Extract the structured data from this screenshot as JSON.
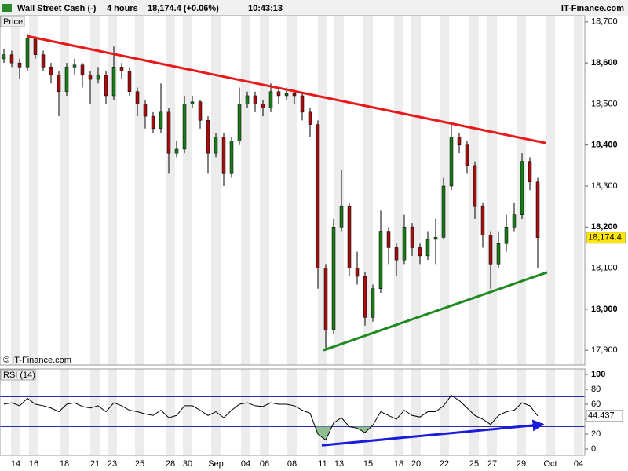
{
  "header": {
    "instrument": "Wall Street Cash (-)",
    "timeframe": "4 hours",
    "price": "18,174.4 (+0.06%)",
    "time": "10:43:13",
    "brand": "IT-Finance.com"
  },
  "chart_data": [
    {
      "type": "candlestick",
      "label": "Price",
      "copyright": "© IT-Finance.com",
      "last_label": "18,174.4",
      "up_color": "#1a7a1a",
      "down_color": "#a01010",
      "xlim": [
        -0.5,
        74
      ],
      "xticks": [
        {
          "value": 1.5,
          "label": "14"
        },
        {
          "value": 3.8,
          "label": "16"
        },
        {
          "value": 7.7,
          "label": "18"
        },
        {
          "value": 11.6,
          "label": "21"
        },
        {
          "value": 13.8,
          "label": "23"
        },
        {
          "value": 17.3,
          "label": "25"
        },
        {
          "value": 21.2,
          "label": "28"
        },
        {
          "value": 23.4,
          "label": "30"
        },
        {
          "value": 27,
          "label": "Sep"
        },
        {
          "value": 30.8,
          "label": "04"
        },
        {
          "value": 33.2,
          "label": "06"
        },
        {
          "value": 36.7,
          "label": "08"
        },
        {
          "value": 40.6,
          "label": "11"
        },
        {
          "value": 42.7,
          "label": "13"
        },
        {
          "value": 46.4,
          "label": "15"
        },
        {
          "value": 50.3,
          "label": "18"
        },
        {
          "value": 52.5,
          "label": "20"
        },
        {
          "value": 56.1,
          "label": "22"
        },
        {
          "value": 59.9,
          "label": "25"
        },
        {
          "value": 62.2,
          "label": "27"
        },
        {
          "value": 65.9,
          "label": "29"
        },
        {
          "value": 69.6,
          "label": "Oct"
        },
        {
          "value": 73.2,
          "label": "04"
        }
      ],
      "ylim": [
        17864,
        18715
      ],
      "yticks": [
        {
          "value": 17900,
          "label": "17,900"
        },
        {
          "value": 18000,
          "label": "18,000"
        },
        {
          "value": 18100,
          "label": "18,100"
        },
        {
          "value": 18200,
          "label": "18,200"
        },
        {
          "value": 18300,
          "label": "18,300"
        },
        {
          "value": 18400,
          "label": "18,400"
        },
        {
          "value": 18500,
          "label": "18,500"
        },
        {
          "value": 18600,
          "label": "18,600"
        },
        {
          "value": 18700,
          "label": "18,700"
        }
      ],
      "candles": [
        [
          18610,
          18635,
          18600,
          18620
        ],
        [
          18620,
          18630,
          18590,
          18600
        ],
        [
          18600,
          18610,
          18560,
          18590
        ],
        [
          18590,
          18670,
          18580,
          18660
        ],
        [
          18660,
          18665,
          18610,
          18620
        ],
        [
          18620,
          18630,
          18580,
          18590
        ],
        [
          18590,
          18600,
          18550,
          18570
        ],
        [
          18570,
          18580,
          18470,
          18530
        ],
        [
          18530,
          18600,
          18520,
          18590
        ],
        [
          18590,
          18610,
          18570,
          18595
        ],
        [
          18595,
          18600,
          18540,
          18570
        ],
        [
          18570,
          18580,
          18500,
          18560
        ],
        [
          18560,
          18590,
          18550,
          18570
        ],
        [
          18570,
          18580,
          18500,
          18520
        ],
        [
          18520,
          18640,
          18510,
          18590
        ],
        [
          18590,
          18600,
          18560,
          18580
        ],
        [
          18580,
          18590,
          18520,
          18530
        ],
        [
          18530,
          18540,
          18470,
          18500
        ],
        [
          18500,
          18510,
          18440,
          18470
        ],
        [
          18470,
          18480,
          18430,
          18440
        ],
        [
          18440,
          18550,
          18430,
          18480
        ],
        [
          18480,
          18490,
          18330,
          18380
        ],
        [
          18380,
          18410,
          18370,
          18390
        ],
        [
          18390,
          18520,
          18380,
          18500
        ],
        [
          18500,
          18520,
          18490,
          18505
        ],
        [
          18505,
          18510,
          18440,
          18460
        ],
        [
          18460,
          18470,
          18330,
          18380
        ],
        [
          18380,
          18430,
          18370,
          18420
        ],
        [
          18420,
          18430,
          18300,
          18330
        ],
        [
          18330,
          18420,
          18320,
          18410
        ],
        [
          18410,
          18540,
          18400,
          18500
        ],
        [
          18500,
          18530,
          18490,
          18520
        ],
        [
          18520,
          18530,
          18480,
          18500
        ],
        [
          18500,
          18510,
          18470,
          18490
        ],
        [
          18490,
          18550,
          18480,
          18530
        ],
        [
          18530,
          18540,
          18500,
          18520
        ],
        [
          18520,
          18540,
          18510,
          18525
        ],
        [
          18525,
          18535,
          18500,
          18520
        ],
        [
          18520,
          18530,
          18460,
          18480
        ],
        [
          18480,
          18490,
          18420,
          18450
        ],
        [
          18450,
          18460,
          18050,
          18100
        ],
        [
          18100,
          18110,
          17900,
          17950
        ],
        [
          17950,
          18220,
          17940,
          18200
        ],
        [
          18200,
          18340,
          18190,
          18250
        ],
        [
          18250,
          18260,
          18080,
          18100
        ],
        [
          18100,
          18140,
          18060,
          18080
        ],
        [
          18080,
          18090,
          17960,
          17980
        ],
        [
          17980,
          18060,
          17970,
          18050
        ],
        [
          18050,
          18240,
          18040,
          18190
        ],
        [
          18190,
          18200,
          18110,
          18150
        ],
        [
          18150,
          18160,
          18080,
          18120
        ],
        [
          18120,
          18230,
          18110,
          18200
        ],
        [
          18200,
          18210,
          18130,
          18150
        ],
        [
          18150,
          18160,
          18110,
          18130
        ],
        [
          18130,
          18190,
          18120,
          18170
        ],
        [
          18170,
          18220,
          18110,
          18175
        ],
        [
          18175,
          18320,
          18170,
          18300
        ],
        [
          18300,
          18450,
          18290,
          18420
        ],
        [
          18420,
          18430,
          18380,
          18400
        ],
        [
          18400,
          18410,
          18330,
          18350
        ],
        [
          18350,
          18360,
          18220,
          18250
        ],
        [
          18250,
          18260,
          18150,
          18180
        ],
        [
          18180,
          18190,
          18050,
          18110
        ],
        [
          18110,
          18190,
          18100,
          18160
        ],
        [
          18160,
          18230,
          18140,
          18200
        ],
        [
          18200,
          18260,
          18190,
          18230
        ],
        [
          18230,
          18380,
          18220,
          18360
        ],
        [
          18360,
          18370,
          18290,
          18310
        ],
        [
          18310,
          18320,
          18100,
          18174.4
        ]
      ],
      "trendlines": [
        {
          "color": "#e8191a",
          "x": [
            3,
            69
          ],
          "y": [
            18665,
            18405
          ]
        },
        {
          "color": "#1f8a1f",
          "x": [
            40.7,
            69.2
          ],
          "y": [
            17900,
            18090
          ]
        }
      ]
    },
    {
      "type": "line",
      "label": "RSI (14)",
      "color": "#000000",
      "fill_color": "#8fbf8f",
      "last_label": "44.437",
      "xlim": [
        -0.5,
        74
      ],
      "ylim": [
        -8.4,
        107.4
      ],
      "yticks": [
        0,
        20,
        40,
        60,
        80,
        100
      ],
      "levels": [
        70,
        30
      ],
      "level_color": "#2a2ab0",
      "values": [
        60,
        62,
        58,
        68,
        60,
        58,
        55,
        50,
        60,
        62,
        57,
        55,
        58,
        50,
        62,
        58,
        52,
        50,
        47,
        45,
        52,
        42,
        45,
        58,
        58,
        52,
        45,
        50,
        42,
        52,
        60,
        62,
        58,
        57,
        62,
        60,
        60,
        58,
        52,
        48,
        20,
        12,
        35,
        42,
        30,
        28,
        22,
        32,
        50,
        45,
        40,
        52,
        45,
        43,
        50,
        50,
        58,
        72,
        65,
        55,
        45,
        40,
        33,
        45,
        50,
        52,
        62,
        58,
        44.437
      ],
      "trendlines": [
        {
          "color": "#1c1cdc",
          "x": [
            40.5,
            68.7
          ],
          "y": [
            5,
            33
          ]
        }
      ]
    }
  ]
}
